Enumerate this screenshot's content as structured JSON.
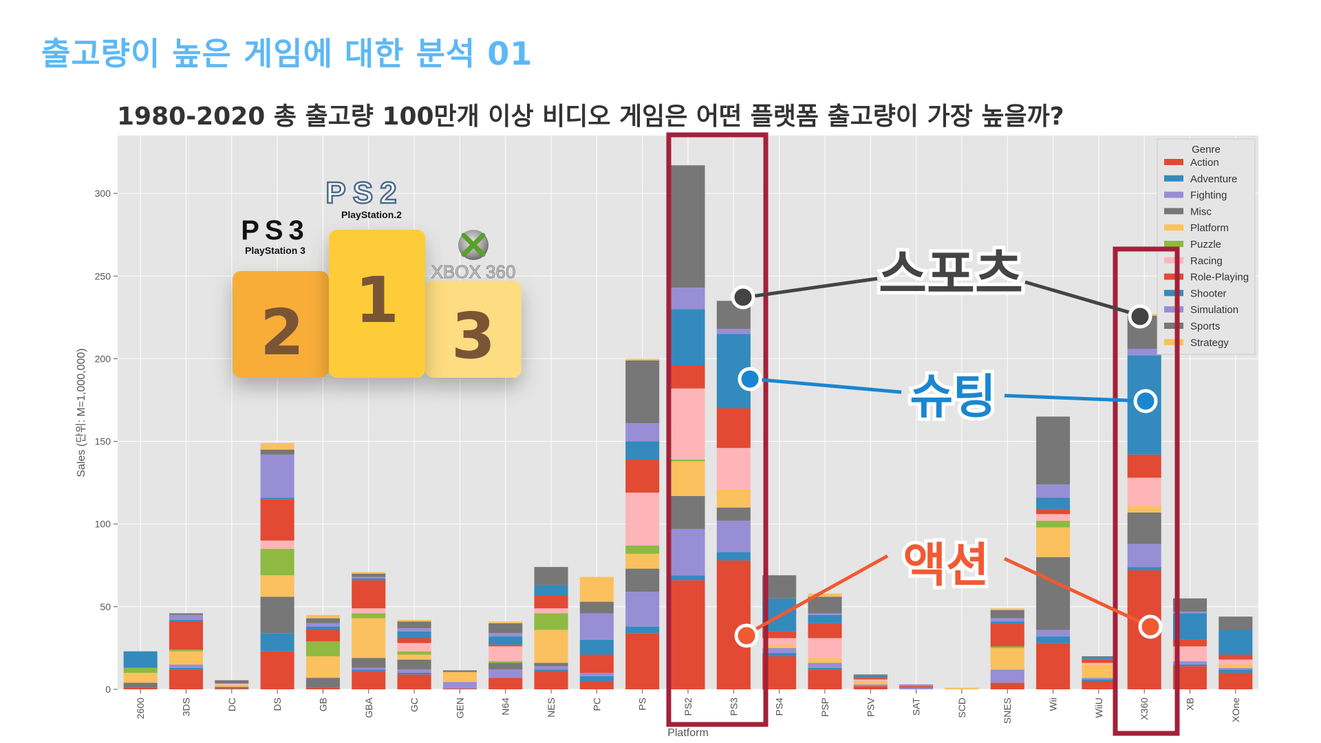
{
  "page": {
    "title": "출고량이 높은 게임에 대한 분석 01",
    "chart_title": "1980-2020 총 출고량 100만개 이상 비디오 게임은 어떤 플랫폼 출고량이 가장 높을까?"
  },
  "podium": {
    "first": {
      "num": "1",
      "logo": "PS2",
      "logo_sub": "PlayStation.2"
    },
    "second": {
      "num": "2",
      "logo": "PS3",
      "logo_sub": "PlayStation 3"
    },
    "third": {
      "num": "3",
      "logo": "XBOX 360",
      "logo_sub": ""
    }
  },
  "callouts": {
    "sports": "스포츠",
    "shooter": "슈팅",
    "action": "액션"
  },
  "colors": {
    "Action": "#e24a33",
    "Adventure": "#348abd",
    "Fighting": "#988ed5",
    "Misc": "#777777",
    "Platform": "#fbc15e",
    "Puzzle": "#8eba42",
    "Racing": "#ffb5b8",
    "Role-Playing": "#e24a33",
    "Shooter": "#348abd",
    "Simulation": "#988ed5",
    "Sports": "#777777",
    "Strategy": "#fbc15e",
    "highlight_box": "#a3213a",
    "sports_callout": "#444444",
    "shooter_callout": "#1a86d0",
    "action_callout": "#f05a33",
    "page_title": "#5cb8f5"
  },
  "chart_data": {
    "type": "bar",
    "stacked": true,
    "xlabel": "Platform",
    "ylabel": "Sales (단위: M=1,000,000)",
    "ylim": [
      0,
      335
    ],
    "yticks": [
      0,
      50,
      100,
      150,
      200,
      250,
      300
    ],
    "grid": true,
    "legend_title": "Genre",
    "legend_position": "top-right",
    "categories": [
      "2600",
      "3DS",
      "DC",
      "DS",
      "GB",
      "GBA",
      "GC",
      "GEN",
      "N64",
      "NES",
      "PC",
      "PS",
      "PS2",
      "PS3",
      "PS4",
      "PSP",
      "PSV",
      "SAT",
      "SCD",
      "SNES",
      "Wii",
      "WiiU",
      "X360",
      "XB",
      "XOne"
    ],
    "series": [
      {
        "name": "Action",
        "values": [
          1,
          12,
          0.5,
          23,
          1,
          11,
          9,
          0.5,
          7,
          11,
          5,
          34,
          66,
          78,
          20,
          12,
          2,
          0,
          0,
          4,
          28,
          5,
          72,
          14,
          10
        ]
      },
      {
        "name": "Adventure",
        "values": [
          0,
          1,
          0,
          11,
          0,
          1,
          1,
          0,
          0,
          1,
          3,
          4,
          3,
          5,
          2,
          1,
          0,
          0,
          0,
          0,
          4,
          1,
          2,
          1,
          2
        ]
      },
      {
        "name": "Fighting",
        "values": [
          0,
          2,
          0,
          0,
          0,
          1,
          2,
          4,
          5,
          2,
          2,
          21,
          28,
          19,
          3,
          3,
          1,
          1,
          0,
          8,
          4,
          1,
          14,
          2,
          1
        ]
      },
      {
        "name": "Misc",
        "values": [
          3,
          0,
          1,
          22,
          6,
          6,
          6,
          0,
          4,
          2,
          0,
          14,
          20,
          8,
          0,
          0,
          0,
          0,
          0,
          0,
          44,
          0,
          19,
          0,
          0
        ]
      },
      {
        "name": "Platform",
        "values": [
          6,
          8,
          1,
          13,
          13,
          24,
          3,
          6,
          0,
          20,
          0,
          9,
          21,
          11,
          2,
          3,
          2,
          0,
          1,
          13,
          18,
          8,
          4,
          0,
          2
        ]
      },
      {
        "name": "Puzzle",
        "values": [
          3,
          1,
          0,
          16,
          9,
          3,
          2,
          0,
          1,
          10,
          0,
          5,
          1,
          0,
          0,
          0,
          0,
          0,
          0,
          1,
          4,
          0,
          0,
          0,
          0
        ]
      },
      {
        "name": "Racing",
        "values": [
          0,
          0,
          1,
          5,
          0,
          3,
          5,
          0,
          9,
          3,
          0,
          32,
          43,
          25,
          4,
          12,
          1,
          0,
          0,
          0,
          4,
          1,
          17,
          9,
          3
        ]
      },
      {
        "name": "Role-Playing",
        "values": [
          0,
          17,
          0,
          25,
          7,
          17,
          3,
          0,
          1,
          8,
          11,
          20,
          14,
          24,
          4,
          9,
          1,
          1,
          0,
          14,
          3,
          2,
          14,
          4,
          3
        ]
      },
      {
        "name": "Shooter",
        "values": [
          10,
          1,
          0,
          1,
          2,
          1,
          4,
          0,
          5,
          6,
          9,
          11,
          34,
          45,
          20,
          5,
          1,
          0,
          0,
          1,
          7,
          1,
          60,
          16,
          15
        ]
      },
      {
        "name": "Simulation",
        "values": [
          0,
          3,
          0,
          26,
          2,
          1,
          2,
          0,
          2,
          0,
          16,
          11,
          13,
          3,
          0,
          1,
          0,
          1,
          0,
          2,
          8,
          0,
          4,
          1,
          0
        ]
      },
      {
        "name": "Sports",
        "values": [
          0,
          1,
          2,
          3,
          3,
          2,
          4,
          1,
          6,
          11,
          7,
          38,
          74,
          17,
          14,
          10,
          1,
          0,
          0,
          5,
          41,
          1,
          20,
          8,
          8
        ]
      },
      {
        "name": "Strategy",
        "values": [
          0,
          0,
          0,
          4,
          2,
          1,
          1,
          0,
          1,
          0,
          15,
          1,
          0,
          0,
          0,
          2,
          0,
          0,
          0,
          1,
          0,
          0,
          1,
          0,
          0
        ]
      }
    ]
  }
}
